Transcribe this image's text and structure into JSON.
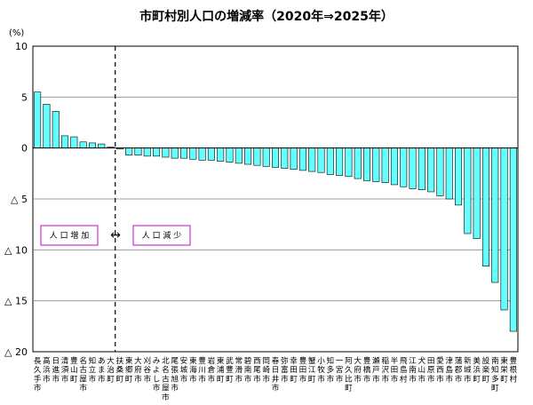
{
  "chart_data": {
    "type": "bar",
    "title": "市町村別人口の増減率（2020年⇒2025年）",
    "unit_label": "(%)",
    "ylim": [
      -20,
      10
    ],
    "yticks": [
      {
        "value": 10,
        "label": "10"
      },
      {
        "value": 5,
        "label": "5"
      },
      {
        "value": 0,
        "label": "0"
      },
      {
        "value": -5,
        "label": "△ 5"
      },
      {
        "value": -10,
        "label": "△ 10"
      },
      {
        "value": -15,
        "label": "△ 15"
      },
      {
        "value": -20,
        "label": "△ 20"
      }
    ],
    "grid": true,
    "bar_color": "#66ffff",
    "bar_stroke": "#000000",
    "divider_after_index": 8,
    "annotations": {
      "increase": "人 口 増 加",
      "decrease": "人 口 減 少",
      "arrow": "↔",
      "box_color": "#cc33cc"
    },
    "categories": [
      "長久手市",
      "高浜市",
      "日進市",
      "清須市",
      "豊山町",
      "名古屋市",
      "知立市",
      "あま市",
      "大治町",
      "扶桑町",
      "東郷町",
      "大府市",
      "刈谷市",
      "みよし市",
      "北名古屋市",
      "尾張旭市",
      "安城市",
      "東海市",
      "豊川市",
      "岩倉市",
      "東浦町",
      "武豊町",
      "常滑市",
      "碧南市",
      "西尾市",
      "岡崎市",
      "春日井市",
      "弥富市",
      "幸田町",
      "豊田市",
      "蟹江町",
      "小牧市",
      "知多市",
      "一宮市",
      "阿久比町",
      "大府市",
      "豊橋市",
      "瀬戸市",
      "稲沢市",
      "半田市",
      "飛島村",
      "江南市",
      "犬山市",
      "田原市",
      "愛西市",
      "津島市",
      "蒲郡市",
      "新城市",
      "美浜町",
      "設楽町",
      "南知多町",
      "東栄町",
      "豊根村"
    ],
    "values": [
      5.5,
      4.3,
      3.6,
      1.2,
      1.1,
      0.6,
      0.5,
      0.4,
      0.1,
      -0.1,
      -0.7,
      -0.7,
      -0.8,
      -0.8,
      -0.9,
      -1.0,
      -1.0,
      -1.1,
      -1.2,
      -1.2,
      -1.3,
      -1.4,
      -1.5,
      -1.6,
      -1.7,
      -1.8,
      -1.9,
      -2.0,
      -2.1,
      -2.2,
      -2.3,
      -2.4,
      -2.6,
      -2.7,
      -2.8,
      -3.0,
      -3.2,
      -3.3,
      -3.4,
      -3.6,
      -3.8,
      -4.0,
      -4.1,
      -4.3,
      -4.7,
      -5.0,
      -5.6,
      -8.4,
      -8.9,
      -11.6,
      -13.2,
      -15.9,
      -18.0
    ]
  }
}
